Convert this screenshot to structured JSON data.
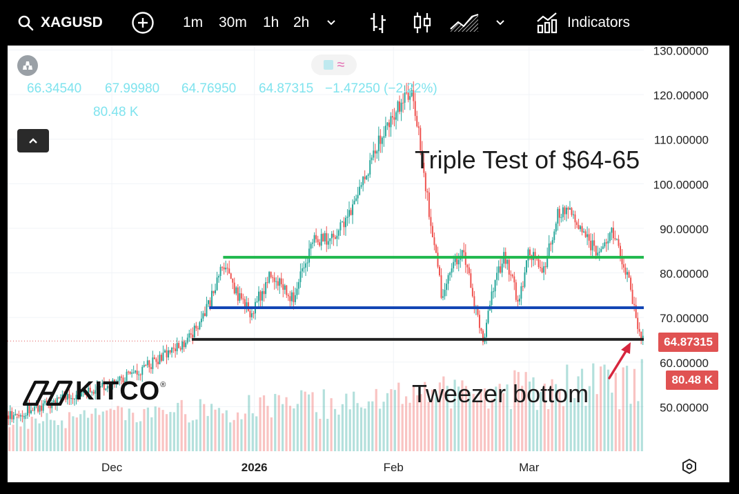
{
  "toolbar": {
    "symbol": "XAGUSD",
    "intervals": [
      "1m",
      "30m",
      "1h",
      "2h"
    ],
    "indicators_label": "Indicators",
    "icons": [
      "search-icon",
      "add-symbol-icon",
      "chevron-down-icon",
      "bar-style-icon",
      "candle-style-icon",
      "area-style-icon",
      "chevron-down-icon",
      "indicators-icon"
    ]
  },
  "legend": {
    "open": "66.34540",
    "high": "67.99980",
    "low": "64.76950",
    "close": "64.87315",
    "change": "−1.47250 (−2.22%)",
    "volume": "80.48 K"
  },
  "watermark": {
    "logo_text": "KITCO"
  },
  "annotations": {
    "title": "Triple Test of $64-65",
    "bottom_note": "Tweezer bottom"
  },
  "price_tags": {
    "last_price": "64.87315",
    "last_volume": "80.48 K"
  },
  "colors": {
    "support_green": "#1fb84d",
    "support_blue": "#1346b4",
    "support_black": "#222222",
    "price_tag": "#e05252",
    "up_candle": "#26a69a",
    "down_candle": "#ef5350",
    "arrow": "#d7263d"
  },
  "chart_data": {
    "type": "candlestick",
    "symbol": "XAGUSD",
    "title": "Triple Test of $64-65",
    "y_axis": {
      "ticks": [
        130,
        120,
        110,
        100,
        90,
        80,
        70,
        60,
        50
      ],
      "tick_labels": [
        "130.00000",
        "120.00000",
        "110.00000",
        "100.00000",
        "90.00000",
        "80.00000",
        "70.00000",
        "60.00000",
        "50.00000"
      ],
      "ylim": [
        40,
        131
      ]
    },
    "x_axis": {
      "tick_labels": [
        "Dec",
        "2026",
        "Feb",
        "Mar"
      ],
      "tick_positions": [
        30,
        71,
        111,
        150
      ],
      "xlim": [
        0,
        183
      ]
    },
    "price_path": [
      [
        0,
        48
      ],
      [
        10,
        50
      ],
      [
        20,
        53
      ],
      [
        30,
        55
      ],
      [
        40,
        59
      ],
      [
        48,
        63
      ],
      [
        53,
        66
      ],
      [
        58,
        73
      ],
      [
        62,
        82
      ],
      [
        66,
        75
      ],
      [
        70,
        71
      ],
      [
        76,
        80
      ],
      [
        82,
        74
      ],
      [
        88,
        87
      ],
      [
        94,
        88
      ],
      [
        100,
        96
      ],
      [
        104,
        103
      ],
      [
        108,
        112
      ],
      [
        112,
        117
      ],
      [
        116,
        121
      ],
      [
        119,
        108
      ],
      [
        121,
        95
      ],
      [
        123,
        85
      ],
      [
        125,
        74
      ],
      [
        128,
        81
      ],
      [
        131,
        86
      ],
      [
        134,
        74
      ],
      [
        137,
        65
      ],
      [
        140,
        78
      ],
      [
        143,
        84
      ],
      [
        147,
        73
      ],
      [
        150,
        85
      ],
      [
        154,
        80
      ],
      [
        158,
        93
      ],
      [
        162,
        95
      ],
      [
        166,
        88
      ],
      [
        170,
        84
      ],
      [
        174,
        89
      ],
      [
        177,
        82
      ],
      [
        179,
        77
      ],
      [
        181,
        69
      ],
      [
        183,
        64.87
      ]
    ],
    "support_lines": [
      {
        "name": "green",
        "price": 83.5,
        "x_start": 62,
        "x_end": 183
      },
      {
        "name": "blue",
        "price": 72.2,
        "x_start": 58,
        "x_end": 183
      },
      {
        "name": "black",
        "price": 65.1,
        "x_start": 53,
        "x_end": 183
      }
    ],
    "volume_bars": 170,
    "last_price": 64.87315,
    "last_volume": "80.48 K"
  }
}
